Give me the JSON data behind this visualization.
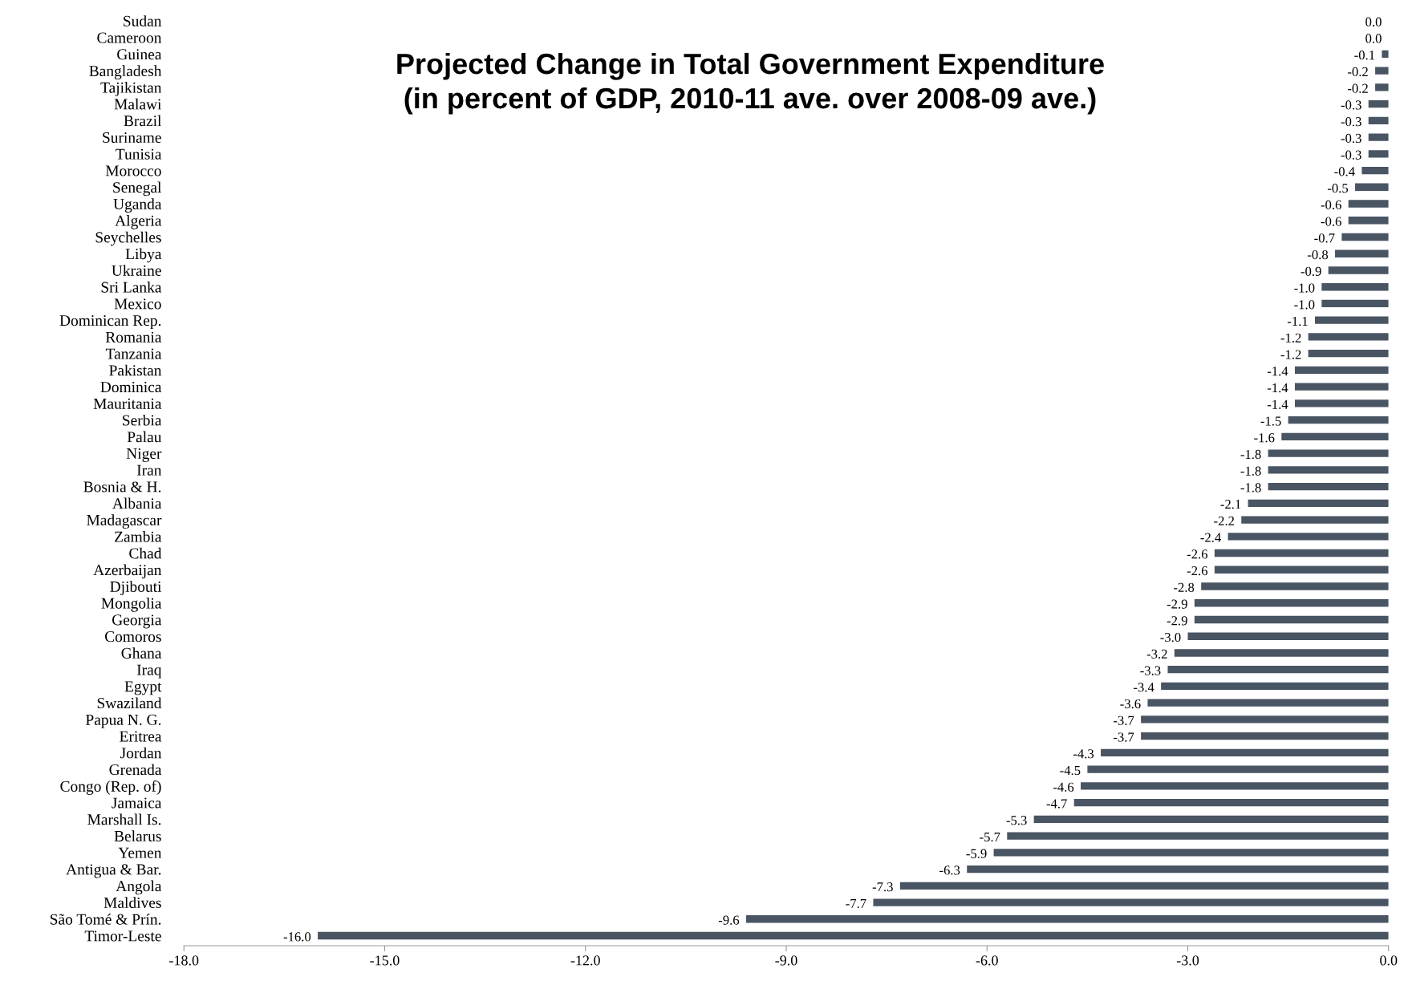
{
  "chart_data": {
    "type": "bar",
    "orientation": "horizontal",
    "title": "Projected Change in Total Government Expenditure\n(in percent of GDP, 2010-11 ave. over 2008-09 ave.)",
    "categories": [
      "Sudan",
      "Cameroon",
      "Guinea",
      "Bangladesh",
      "Tajikistan",
      "Malawi",
      "Brazil",
      "Suriname",
      "Tunisia",
      "Morocco",
      "Senegal",
      "Uganda",
      "Algeria",
      "Seychelles",
      "Libya",
      "Ukraine",
      "Sri Lanka",
      "Mexico",
      "Dominican Rep.",
      "Romania",
      "Tanzania",
      "Pakistan",
      "Dominica",
      "Mauritania",
      "Serbia",
      "Palau",
      "Niger",
      "Iran",
      "Bosnia & H.",
      "Albania",
      "Madagascar",
      "Zambia",
      "Chad",
      "Azerbaijan",
      "Djibouti",
      "Mongolia",
      "Georgia",
      "Comoros",
      "Ghana",
      "Iraq",
      "Egypt",
      "Swaziland",
      "Papua N. G.",
      "Eritrea",
      "Jordan",
      "Grenada",
      "Congo (Rep. of)",
      "Jamaica",
      "Marshall Is.",
      "Belarus",
      "Yemen",
      "Antigua & Bar.",
      "Angola",
      "Maldives",
      "São Tomé & Prín.",
      "Timor-Leste"
    ],
    "values": [
      0.0,
      0.0,
      -0.1,
      -0.2,
      -0.2,
      -0.3,
      -0.3,
      -0.3,
      -0.3,
      -0.4,
      -0.5,
      -0.6,
      -0.6,
      -0.7,
      -0.8,
      -0.9,
      -1.0,
      -1.0,
      -1.1,
      -1.2,
      -1.2,
      -1.4,
      -1.4,
      -1.4,
      -1.5,
      -1.6,
      -1.8,
      -1.8,
      -1.8,
      -2.1,
      -2.2,
      -2.4,
      -2.6,
      -2.6,
      -2.8,
      -2.9,
      -2.9,
      -3.0,
      -3.2,
      -3.3,
      -3.4,
      -3.6,
      -3.7,
      -3.7,
      -4.3,
      -4.5,
      -4.6,
      -4.7,
      -5.3,
      -5.7,
      -5.9,
      -6.3,
      -7.3,
      -7.7,
      -9.6,
      -16.0
    ],
    "value_labels": [
      "0.0",
      "0.0",
      "-0.1",
      "-0.2",
      "-0.2",
      "-0.3",
      "-0.3",
      "-0.3",
      "-0.3",
      "-0.4",
      "-0.5",
      "-0.6",
      "-0.6",
      "-0.7",
      "-0.8",
      "-0.9",
      "-1.0",
      "-1.0",
      "-1.1",
      "-1.2",
      "-1.2",
      "-1.4",
      "-1.4",
      "-1.4",
      "-1.5",
      "-1.6",
      "-1.8",
      "-1.8",
      "-1.8",
      "-2.1",
      "-2.2",
      "-2.4",
      "-2.6",
      "-2.6",
      "-2.8",
      "-2.9",
      "-2.9",
      "-3.0",
      "-3.2",
      "-3.3",
      "-3.4",
      "-3.6",
      "-3.7",
      "-3.7",
      "-4.3",
      "-4.5",
      "-4.6",
      "-4.7",
      "-5.3",
      "-5.7",
      "-5.9",
      "-6.3",
      "-7.3",
      "-7.7",
      "-9.6",
      "-16.0"
    ],
    "color": "#4a5564",
    "xlim": [
      -18,
      0
    ],
    "xticks": [
      {
        "value": -18,
        "label": "-18.0"
      },
      {
        "value": -15,
        "label": "-15.0"
      },
      {
        "value": -12,
        "label": "-12.0"
      },
      {
        "value": -9,
        "label": "-9.0"
      },
      {
        "value": -6,
        "label": "-6.0"
      },
      {
        "value": -3,
        "label": "-3.0"
      },
      {
        "value": 0,
        "label": "0.0"
      }
    ],
    "grid": false
  }
}
